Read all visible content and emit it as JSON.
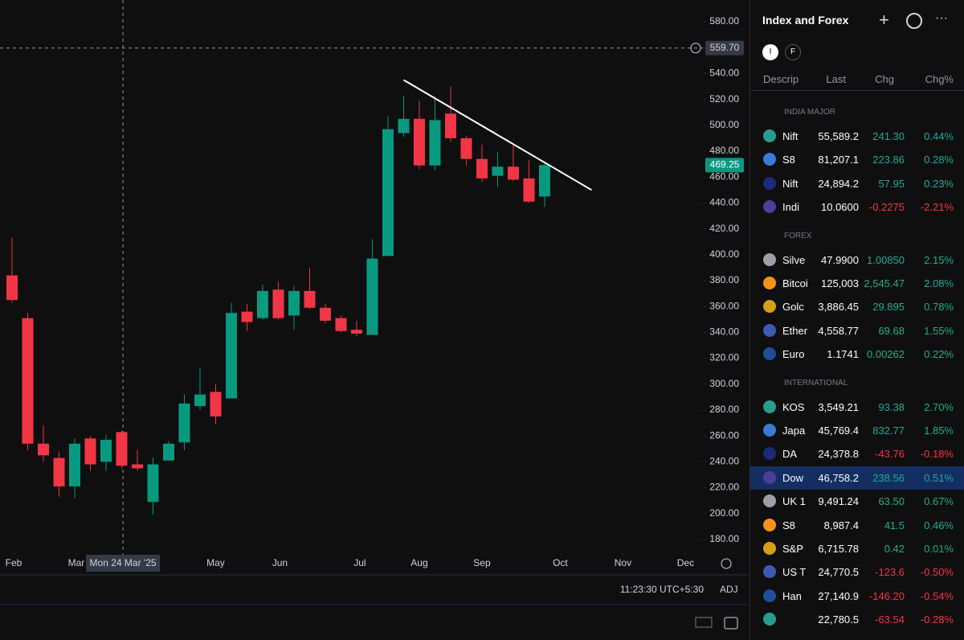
{
  "chart_data": {
    "type": "candlestick",
    "x": [
      0,
      1,
      2,
      3,
      4,
      5,
      6,
      7,
      8,
      9,
      10,
      11,
      12,
      13,
      14,
      15,
      16,
      17,
      18,
      19,
      20,
      21,
      22,
      23,
      24,
      25,
      26,
      27,
      28,
      29,
      30,
      31,
      32,
      33,
      34
    ],
    "open": [
      384,
      351,
      254,
      243,
      221,
      258,
      240,
      263,
      238,
      209,
      241,
      255,
      283,
      294,
      289,
      356,
      351,
      373,
      353,
      372,
      359,
      351,
      342,
      338,
      399,
      494,
      505,
      469,
      509,
      490,
      474,
      461,
      468,
      459,
      445
    ],
    "high": [
      413,
      355,
      268,
      248,
      258,
      260,
      261,
      264,
      249,
      243,
      256,
      292,
      312,
      300,
      363,
      362,
      377,
      379,
      376,
      390,
      362,
      353,
      349,
      412,
      507,
      523,
      519,
      522,
      530,
      492,
      485,
      479,
      485,
      473,
      472
    ],
    "low": [
      363,
      249,
      240,
      213,
      212,
      233,
      233,
      235,
      233,
      199,
      241,
      249,
      280,
      269,
      289,
      341,
      350,
      350,
      342,
      358,
      347,
      340,
      337,
      338,
      399,
      491,
      466,
      465,
      487,
      469,
      456,
      452,
      457,
      440,
      437
    ],
    "close": [
      365,
      254,
      245,
      221,
      254,
      238,
      257,
      237,
      235,
      238,
      254,
      285,
      292,
      275,
      355,
      348,
      372,
      351,
      372,
      359,
      349,
      341,
      339,
      397,
      497,
      505,
      469,
      504,
      490,
      474,
      459,
      468,
      458,
      441,
      469.25
    ],
    "up_color": "#089981",
    "down_color": "#f23645",
    "xlim": [
      -0.77,
      43.85
    ],
    "ylim": [
      169.4,
      596.8
    ],
    "yticks": [
      {
        "value": 180,
        "label": "180.00"
      },
      {
        "value": 200,
        "label": "200.00"
      },
      {
        "value": 220,
        "label": "220.00"
      },
      {
        "value": 240,
        "label": "240.00"
      },
      {
        "value": 260,
        "label": "260.00"
      },
      {
        "value": 280,
        "label": "280.00"
      },
      {
        "value": 300,
        "label": "300.00"
      },
      {
        "value": 320,
        "label": "320.00"
      },
      {
        "value": 340,
        "label": "340.00"
      },
      {
        "value": 360,
        "label": "360.00"
      },
      {
        "value": 380,
        "label": "380.00"
      },
      {
        "value": 400,
        "label": "400.00"
      },
      {
        "value": 420,
        "label": "420.00"
      },
      {
        "value": 440,
        "label": "440.00"
      },
      {
        "value": 460,
        "label": "460.00"
      },
      {
        "value": 480,
        "label": "480.00"
      },
      {
        "value": 500,
        "label": "500.00"
      },
      {
        "value": 520,
        "label": "520.00"
      },
      {
        "value": 540,
        "label": "540.00"
      },
      {
        "value": 560,
        "label": "560.00"
      },
      {
        "value": 580,
        "label": "580.00"
      }
    ],
    "xticks": [
      {
        "value": 0.1,
        "label": "Feb"
      },
      {
        "value": 4.1,
        "label": "Mar"
      },
      {
        "value": 13,
        "label": "May"
      },
      {
        "value": 17.1,
        "label": "Jun"
      },
      {
        "value": 22.2,
        "label": "Jul"
      },
      {
        "value": 26,
        "label": "Aug"
      },
      {
        "value": 30,
        "label": "Sep"
      },
      {
        "value": 35,
        "label": "Oct"
      },
      {
        "value": 39,
        "label": "Nov"
      },
      {
        "value": 43,
        "label": "Dec"
      }
    ],
    "last_label": "469.25",
    "crosshair": {
      "x": 7.08,
      "y": 559.7,
      "x_label": "Mon 24 Mar '25",
      "y_label": "559.70"
    },
    "trendline": {
      "x": [
        25,
        37
      ],
      "y": [
        535,
        450
      ],
      "color": "#ffffff"
    }
  },
  "status_bar": {
    "time": "11:23:30 UTC+5:30",
    "adj": "ADJ"
  },
  "watchlist": {
    "title": "Index and Forex",
    "tabs": [
      "I",
      "F"
    ],
    "columns": [
      "Descrip",
      "Last",
      "Chg",
      "Chg%"
    ],
    "sections": [
      {
        "title": "INDIA MAJOR",
        "rows": [
          {
            "name": "Nift",
            "last": "55,589.2",
            "chg": "241.30",
            "chg_pct": "0.44%"
          },
          {
            "name": "S8",
            "last": "81,207.1",
            "chg": "223.86",
            "chg_pct": "0.28%"
          },
          {
            "name": "Nift",
            "last": "24,894.2",
            "chg": "57.95",
            "chg_pct": "0.23%"
          },
          {
            "name": "Indi",
            "last": "10.0600",
            "chg": "-0.2275",
            "chg_pct": "-2.21%"
          }
        ]
      },
      {
        "title": "FOREX",
        "rows": [
          {
            "name": "Silve",
            "last": "47.9900",
            "chg": "1.00850",
            "chg_pct": "2.15%"
          },
          {
            "name": "Bitcoi",
            "last": "125,003",
            "chg": "2,545.47",
            "chg_pct": "2.08%"
          },
          {
            "name": "Golc",
            "last": "3,886.45",
            "chg": "29.895",
            "chg_pct": "0.78%"
          },
          {
            "name": "Ether",
            "last": "4,558.77",
            "chg": "69.68",
            "chg_pct": "1.55%"
          },
          {
            "name": "Euro",
            "last": "1.1741",
            "chg": "0.00262",
            "chg_pct": "0.22%"
          }
        ]
      },
      {
        "title": "INTERNATIONAL",
        "rows": [
          {
            "name": "KOS",
            "last": "3,549.21",
            "chg": "93.38",
            "chg_pct": "2.70%"
          },
          {
            "name": "Japa",
            "last": "45,769.4",
            "chg": "832.77",
            "chg_pct": "1.85%"
          },
          {
            "name": "DA",
            "last": "24,378.8",
            "chg": "-43.76",
            "chg_pct": "-0.18%"
          },
          {
            "name": "Dow",
            "last": "46,758.2",
            "chg": "238.56",
            "chg_pct": "0.51%",
            "selected": true
          },
          {
            "name": "UK 1",
            "last": "9,491.24",
            "chg": "63.50",
            "chg_pct": "0.67%"
          },
          {
            "name": "S8",
            "last": "8,987.4",
            "chg": "41.5",
            "chg_pct": "0.46%"
          },
          {
            "name": "S&P",
            "last": "6,715.78",
            "chg": "0.42",
            "chg_pct": "0.01%"
          },
          {
            "name": "US T",
            "last": "24,770.5",
            "chg": "-123.6",
            "chg_pct": "-0.50%"
          },
          {
            "name": "Han",
            "last": "27,140.9",
            "chg": "-146.20",
            "chg_pct": "-0.54%"
          },
          {
            "name": "",
            "last": "22,780.5",
            "chg": "-63.54",
            "chg_pct": "-0.28%"
          }
        ]
      }
    ]
  }
}
